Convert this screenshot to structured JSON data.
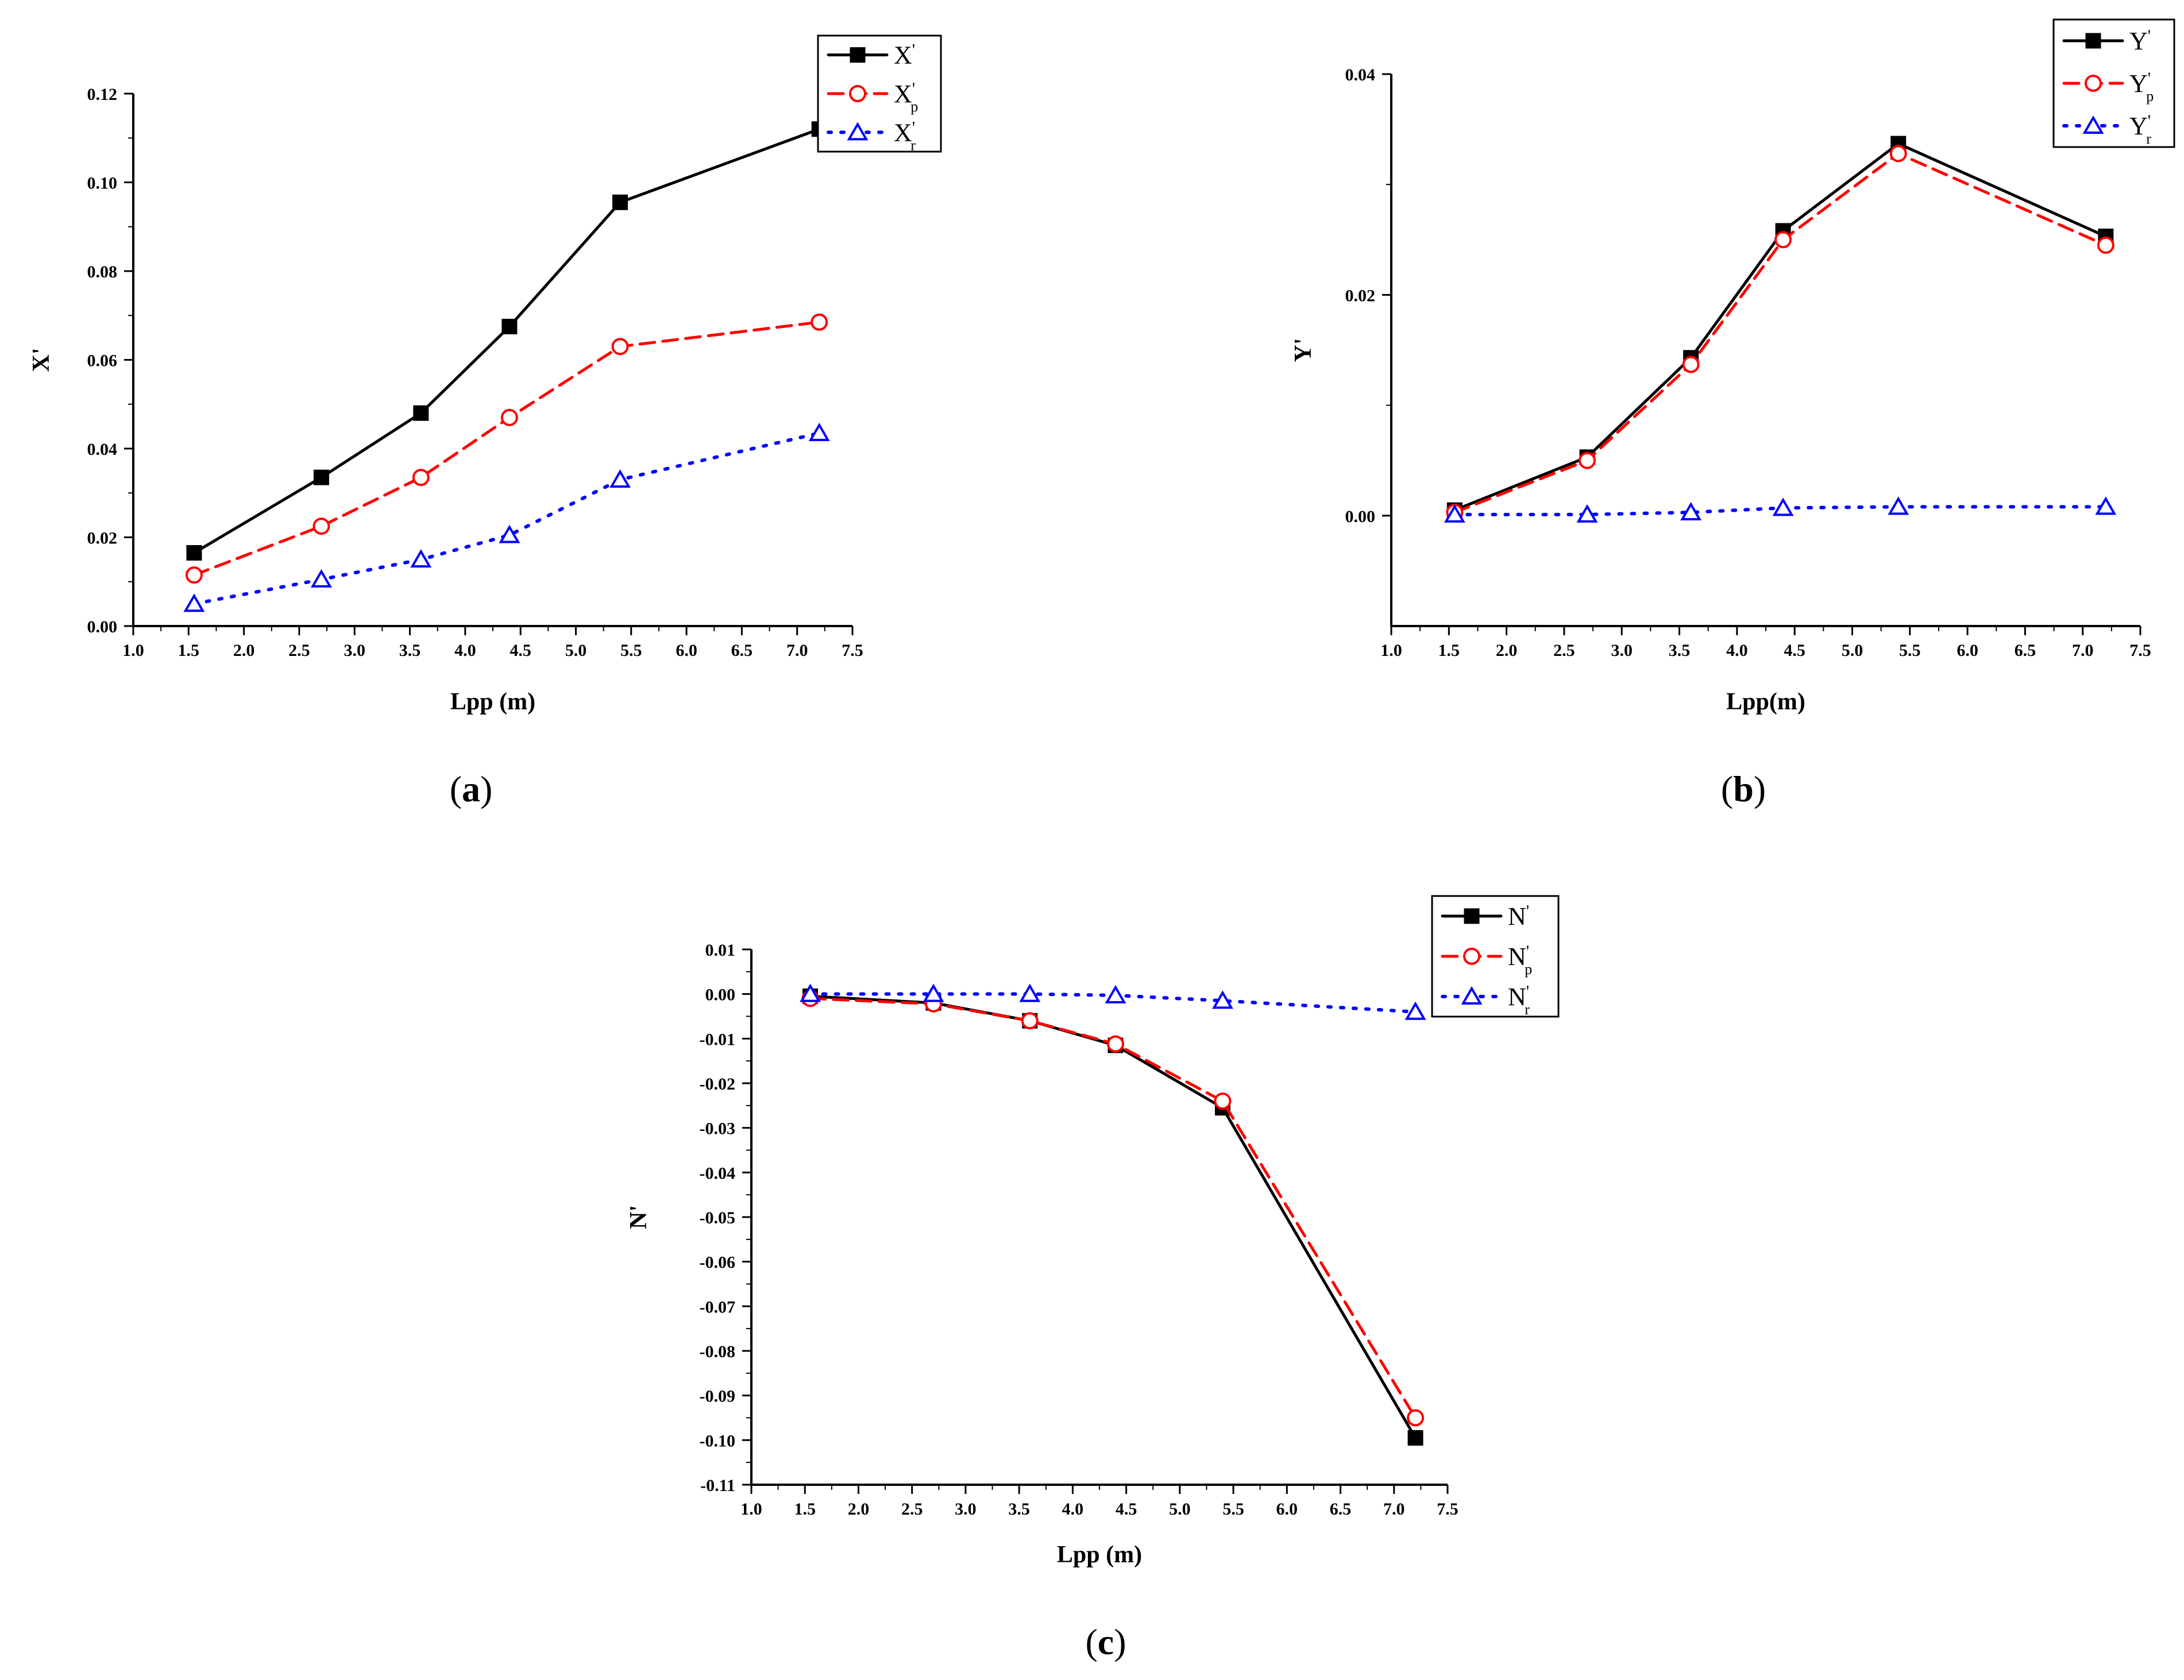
{
  "chart_data": [
    {
      "type": "line",
      "panel": "a",
      "xlabel": "Lpp (m)",
      "ylabel": "X'",
      "xlim": [
        1.0,
        7.5
      ],
      "ylim": [
        0.0,
        0.12
      ],
      "xticks": [
        "1.0",
        "1.5",
        "2.0",
        "2.5",
        "3.0",
        "3.5",
        "4.0",
        "4.5",
        "5.0",
        "5.5",
        "6.0",
        "6.5",
        "7.0",
        "7.5"
      ],
      "yticks": [
        "0.00",
        "0.02",
        "0.04",
        "0.06",
        "0.08",
        "0.10",
        "0.12"
      ],
      "x": [
        1.55,
        2.7,
        3.6,
        4.4,
        5.4,
        7.2
      ],
      "series": [
        {
          "name": "X'",
          "base": "X",
          "sub": "",
          "color": "#000000",
          "dash": "solid",
          "marker": "square",
          "values": [
            0.0165,
            0.0335,
            0.048,
            0.0675,
            0.0955,
            0.112
          ]
        },
        {
          "name": "X'p",
          "base": "X",
          "sub": "p",
          "color": "#ff0000",
          "dash": "dash",
          "marker": "circle",
          "values": [
            0.0115,
            0.0225,
            0.0335,
            0.047,
            0.063,
            0.0685
          ]
        },
        {
          "name": "X'r",
          "base": "X",
          "sub": "r",
          "color": "#0000ff",
          "dash": "dot",
          "marker": "triangle",
          "values": [
            0.005,
            0.0105,
            0.015,
            0.0205,
            0.033,
            0.0435
          ]
        }
      ],
      "legend": "top-right",
      "caption_letter": "a"
    },
    {
      "type": "line",
      "panel": "b",
      "xlabel": "Lpp(m)",
      "ylabel": "Y'",
      "xlim": [
        1.0,
        7.5
      ],
      "ylim": [
        -0.01,
        0.04
      ],
      "xticks": [
        "1.0",
        "1.5",
        "2.0",
        "2.5",
        "3.0",
        "3.5",
        "4.0",
        "4.5",
        "5.0",
        "5.5",
        "6.0",
        "6.5",
        "7.0",
        "7.5"
      ],
      "yticks": [
        "0.00",
        "0.02",
        "0.04"
      ],
      "x": [
        1.55,
        2.7,
        3.6,
        4.4,
        5.4,
        7.2
      ],
      "series": [
        {
          "name": "Y'",
          "base": "Y",
          "sub": "",
          "color": "#000000",
          "dash": "solid",
          "marker": "square",
          "values": [
            0.0005,
            0.0053,
            0.0143,
            0.0258,
            0.0337,
            0.0253
          ]
        },
        {
          "name": "Y'p",
          "base": "Y",
          "sub": "p",
          "color": "#ff0000",
          "dash": "dash",
          "marker": "circle",
          "values": [
            0.0003,
            0.005,
            0.0137,
            0.025,
            0.0328,
            0.0245
          ]
        },
        {
          "name": "Y'r",
          "base": "Y",
          "sub": "r",
          "color": "#0000ff",
          "dash": "dot",
          "marker": "triangle",
          "values": [
            0.0001,
            0.0001,
            0.0003,
            0.0007,
            0.0008,
            0.0008
          ]
        }
      ],
      "legend": "top-right",
      "caption_letter": "b"
    },
    {
      "type": "line",
      "panel": "c",
      "xlabel": "Lpp (m)",
      "ylabel": "N'",
      "xlim": [
        1.0,
        7.5
      ],
      "ylim": [
        -0.11,
        0.01
      ],
      "xticks": [
        "1.0",
        "1.5",
        "2.0",
        "2.5",
        "3.0",
        "3.5",
        "4.0",
        "4.5",
        "5.0",
        "5.5",
        "6.0",
        "6.5",
        "7.0",
        "7.5"
      ],
      "yticks": [
        "0.01",
        "0.00",
        "-0.01",
        "-0.02",
        "-0.03",
        "-0.04",
        "-0.05",
        "-0.06",
        "-0.07",
        "-0.08",
        "-0.09",
        "-0.10",
        "-0.11"
      ],
      "x": [
        1.55,
        2.7,
        3.6,
        4.4,
        5.4,
        7.2
      ],
      "series": [
        {
          "name": "N'",
          "base": "N",
          "sub": "",
          "color": "#000000",
          "dash": "solid",
          "marker": "square",
          "values": [
            -0.0005,
            -0.002,
            -0.006,
            -0.0115,
            -0.0255,
            -0.0995
          ]
        },
        {
          "name": "N'p",
          "base": "N",
          "sub": "p",
          "color": "#ff0000",
          "dash": "dash",
          "marker": "circle",
          "values": [
            -0.001,
            -0.0022,
            -0.006,
            -0.0112,
            -0.024,
            -0.095
          ]
        },
        {
          "name": "N'r",
          "base": "N",
          "sub": "r",
          "color": "#0000ff",
          "dash": "dot",
          "marker": "triangle",
          "values": [
            0.0,
            0.0,
            0.0,
            -0.0003,
            -0.0015,
            -0.004
          ]
        }
      ],
      "legend": "top-right",
      "caption_letter": "c"
    }
  ]
}
